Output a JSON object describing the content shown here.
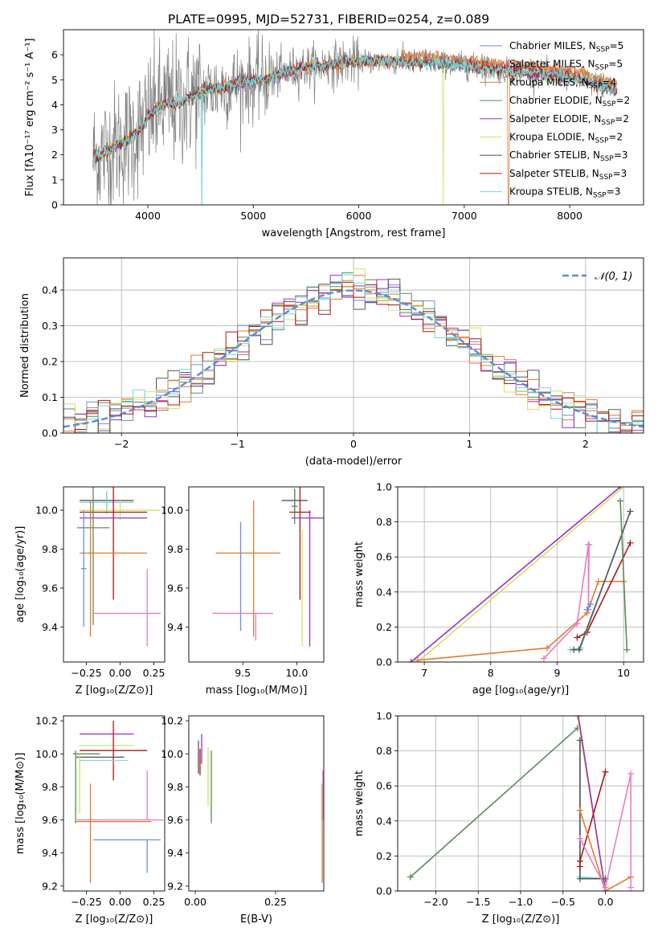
{
  "colors": {
    "Chabrier MILES": "#6b8fd6",
    "Salpeter MILES": "#e07b30",
    "Kroupa MILES": "#e07b30",
    "Chabrier ELODIE": "#5c8a5c",
    "Salpeter ELODIE": "#9b30c0",
    "Kroupa ELODIE": "#d4e060",
    "Chabrier STELIB": "#555555",
    "Salpeter STELIB": "#b01515",
    "Kroupa STELIB": "#7ad6dc",
    "pink": "#e87cc8",
    "gauss": "#5b8bd6",
    "data_gray": "#808080"
  },
  "chart_data": [
    {
      "id": "spectrum",
      "type": "line",
      "title": "PLATE=0995, MJD=52731, FIBERID=0254, z=0.089",
      "xlabel": "wavelength [Angstrom, rest frame]",
      "ylabel": "Flux [fλ10⁻¹⁷ erg cm⁻² s⁻¹ A⁻¹]",
      "xlim": [
        3200,
        8700
      ],
      "ylim": [
        0,
        7
      ],
      "xticks": [
        "4000",
        "5000",
        "6000",
        "7000",
        "8000"
      ],
      "yticks": [
        "0",
        "1",
        "2",
        "3",
        "4",
        "5",
        "6"
      ],
      "grid": false,
      "legend_position": "right",
      "legend": [
        {
          "label": "Chabrier MILES, N",
          "sub": "SSP",
          "suffix": "=5",
          "color_key": "Chabrier MILES"
        },
        {
          "label": "Salpeter MILES, N",
          "sub": "SSP",
          "suffix": "=5",
          "color_key": "Salpeter MILES"
        },
        {
          "label": "Kroupa MILES, N",
          "sub": "SSP",
          "suffix": "=4",
          "color_key": "Kroupa MILES"
        },
        {
          "label": "Chabrier ELODIE, N",
          "sub": "SSP",
          "suffix": "=2",
          "color_key": "Chabrier ELODIE"
        },
        {
          "label": "Salpeter ELODIE, N",
          "sub": "SSP",
          "suffix": "=2",
          "color_key": "Salpeter ELODIE"
        },
        {
          "label": "Kroupa ELODIE, N",
          "sub": "SSP",
          "suffix": "=2",
          "color_key": "Kroupa ELODIE"
        },
        {
          "label": "Chabrier STELIB, N",
          "sub": "SSP",
          "suffix": "=3",
          "color_key": "Chabrier STELIB"
        },
        {
          "label": "Salpeter STELIB, N",
          "sub": "SSP",
          "suffix": "=3",
          "color_key": "Salpeter STELIB"
        },
        {
          "label": "Kroupa STELIB, N",
          "sub": "SSP",
          "suffix": "=3",
          "color_key": "Kroupa STELIB"
        }
      ],
      "model_shape": [
        [
          3450,
          1.8
        ],
        [
          3600,
          2.1
        ],
        [
          3700,
          2.4
        ],
        [
          3800,
          2.55
        ],
        [
          3900,
          2.9
        ],
        [
          3950,
          3.1
        ],
        [
          4000,
          3.5
        ],
        [
          4100,
          3.9
        ],
        [
          4200,
          4.1
        ],
        [
          4300,
          4.0
        ],
        [
          4400,
          4.3
        ],
        [
          4500,
          4.5
        ],
        [
          4700,
          4.7
        ],
        [
          4900,
          4.9
        ],
        [
          5100,
          5.0
        ],
        [
          5300,
          5.3
        ],
        [
          5500,
          5.5
        ],
        [
          5700,
          5.6
        ],
        [
          5900,
          5.7
        ],
        [
          6100,
          5.75
        ],
        [
          6300,
          5.75
        ],
        [
          6500,
          5.7
        ],
        [
          6700,
          5.7
        ],
        [
          6900,
          5.6
        ],
        [
          7100,
          5.5
        ],
        [
          7300,
          5.4
        ],
        [
          7500,
          5.3
        ],
        [
          7800,
          5.2
        ],
        [
          8000,
          5.1
        ],
        [
          8200,
          4.9
        ],
        [
          8400,
          4.6
        ]
      ],
      "data_range": [
        3480,
        8450
      ]
    },
    {
      "id": "residuals",
      "type": "histogram",
      "xlabel": "(data-model)/error",
      "ylabel": "Normed distribution",
      "xlim": [
        -2.5,
        2.5
      ],
      "ylim": [
        0,
        0.49
      ],
      "xticks": [
        "−2",
        "−1",
        "0",
        "1",
        "2"
      ],
      "yticks": [
        "0.0",
        "0.1",
        "0.2",
        "0.3",
        "0.4"
      ],
      "grid": true,
      "legend": "𝒩(0, 1)",
      "legend_position": "top-right",
      "bin_width": 0.1
    },
    {
      "id": "age_vs_Z",
      "type": "errorbar",
      "xlabel": "Z [log₁₀(Z/Z⊙)]",
      "ylabel": "age  [log₁₀(age/yr)]",
      "xlim": [
        -0.42,
        0.33
      ],
      "ylim": [
        9.22,
        10.12
      ],
      "xticks": [
        "−0.25",
        "0.00",
        "0.25"
      ],
      "yticks": [
        "9.4",
        "9.6",
        "9.8",
        "10.0"
      ],
      "points": [
        {
          "color_key": "Chabrier STELIB",
          "x": -0.1,
          "xerr": 0.2,
          "y": 10.05,
          "yerr": 0.04
        },
        {
          "color_key": "Kroupa STELIB",
          "x": -0.1,
          "xerr": 0.2,
          "y": 10.04,
          "yerr": 0.06
        },
        {
          "color_key": "Kroupa ELODIE",
          "x": 0.0,
          "xerr": 0.3,
          "y": 10.0,
          "yerr": 0.05
        },
        {
          "color_key": "Salpeter STELIB",
          "x": -0.05,
          "xerr": 0.25,
          "y": 9.99,
          "yerr": 0.45
        },
        {
          "color_key": "Salpeter ELODIE",
          "x": -0.05,
          "xerr": 0.25,
          "y": 9.96,
          "yerr": 0.0
        },
        {
          "color_key": "Chabrier ELODIE",
          "x": -0.2,
          "xerr": 0.12,
          "y": 9.91,
          "yerr": 0.5
        },
        {
          "color_key": "Salpeter MILES",
          "x": -0.05,
          "xerr": 0.25,
          "y": 9.78,
          "yerr": 0.0
        },
        {
          "color_key": "Kroupa MILES",
          "x": -0.22,
          "xerr": 0.0,
          "y": 9.7,
          "yerr": 0.35
        },
        {
          "color_key": "Chabrier MILES",
          "x": -0.27,
          "xerr": 0.02,
          "y": 9.7,
          "yerr": 0.3
        },
        {
          "color_key": "pink",
          "x": 0.05,
          "xerr": 0.25,
          "y": 9.47,
          "yerr": 0.0
        },
        {
          "color_key": "pink",
          "x": 0.2,
          "xerr": 0.0,
          "y": 9.5,
          "yerr": 0.2
        }
      ]
    },
    {
      "id": "age_vs_mass",
      "type": "errorbar",
      "xlabel": "mass [log₁₀(M/M⊙)]",
      "ylabel": "",
      "xlim": [
        9.0,
        10.25
      ],
      "ylim": [
        9.22,
        10.12
      ],
      "xticks": [
        "9.5",
        "10.0"
      ],
      "yticks": [
        "9.4",
        "9.6",
        "9.8",
        "10.0"
      ],
      "points": [
        {
          "color_key": "Chabrier STELIB",
          "x": 9.98,
          "xerr": 0.12,
          "y": 10.05,
          "yerr": 0.06
        },
        {
          "color_key": "Chabrier ELODIE",
          "x": 9.98,
          "xerr": 0.03,
          "y": 10.02,
          "yerr": 0.09
        },
        {
          "color_key": "Salpeter STELIB",
          "x": 10.03,
          "xerr": 0.1,
          "y": 9.99,
          "yerr": 0.45
        },
        {
          "color_key": "Salpeter ELODIE",
          "x": 10.1,
          "xerr": 0.15,
          "y": 9.96,
          "yerr": 0.0
        },
        {
          "color_key": "Salpeter MILES",
          "x": 9.6,
          "xerr": 0.0,
          "y": 9.7,
          "yerr": 0.35
        },
        {
          "color_key": "Salpeter MILES",
          "x": 9.55,
          "xerr": 0.3,
          "y": 9.78,
          "yerr": 0.0
        },
        {
          "color_key": "Chabrier MILES",
          "x": 9.48,
          "xerr": 0.0,
          "y": 9.66,
          "yerr": 0.28
        },
        {
          "color_key": "pink",
          "x": 9.5,
          "xerr": 0.28,
          "y": 9.47,
          "yerr": 0.0
        },
        {
          "color_key": "pink",
          "x": 9.62,
          "xerr": 0.0,
          "y": 9.4,
          "yerr": 0.07
        },
        {
          "color_key": "Kroupa ELODIE",
          "x": 10.05,
          "xerr": 0.0,
          "y": 9.6,
          "yerr": 0.3
        },
        {
          "color_key": "Salpeter ELODIE",
          "x": 10.12,
          "xerr": 0.0,
          "y": 9.65,
          "yerr": 0.35
        }
      ]
    },
    {
      "id": "weight_vs_age",
      "type": "line",
      "xlabel": "age  [log₁₀(age/yr)]",
      "ylabel": "mass weight",
      "xlim": [
        6.6,
        10.3
      ],
      "ylim": [
        0,
        1
      ],
      "xticks": [
        "7",
        "8",
        "9",
        "10"
      ],
      "yticks": [
        "0.0",
        "0.2",
        "0.4",
        "0.6",
        "0.8",
        "1.0"
      ],
      "grid": true,
      "series": [
        {
          "color_key": "Salpeter ELODIE",
          "x": [
            6.8,
            9.95
          ],
          "y": [
            0.0,
            1.0
          ]
        },
        {
          "color_key": "Kroupa ELODIE",
          "x": [
            6.9,
            10.0
          ],
          "y": [
            0.0,
            1.0
          ]
        },
        {
          "color_key": "Salpeter MILES",
          "x": [
            6.9,
            8.85,
            9.45,
            9.62,
            10.0
          ],
          "y": [
            0.01,
            0.08,
            0.28,
            0.46,
            0.46
          ]
        },
        {
          "color_key": "pink",
          "x": [
            8.8,
            9.3,
            9.47,
            9.47,
            9.48
          ],
          "y": [
            0.02,
            0.22,
            0.67,
            0.3,
            0.67
          ]
        },
        {
          "color_key": "Salpeter STELIB",
          "x": [
            9.3,
            9.45,
            10.1
          ],
          "y": [
            0.14,
            0.17,
            0.68
          ]
        },
        {
          "color_key": "Kroupa STELIB",
          "x": [
            9.2,
            9.35,
            10.1
          ],
          "y": [
            0.07,
            0.08,
            0.86
          ]
        },
        {
          "color_key": "Chabrier STELIB",
          "x": [
            9.25,
            9.33,
            10.1
          ],
          "y": [
            0.07,
            0.07,
            0.86
          ]
        },
        {
          "color_key": "Chabrier ELODIE",
          "x": [
            9.95,
            10.05
          ],
          "y": [
            0.92,
            0.07
          ]
        },
        {
          "color_key": "Chabrier MILES",
          "x": [
            9.45,
            9.5
          ],
          "y": [
            0.3,
            0.33
          ]
        }
      ]
    },
    {
      "id": "mass_vs_Z",
      "type": "errorbar",
      "xlabel": "Z [log₁₀(Z/Z⊙)]",
      "ylabel": "mass [log₁₀(M/M⊙)]",
      "xlim": [
        -0.42,
        0.33
      ],
      "ylim": [
        9.17,
        10.23
      ],
      "xticks": [
        "−0.25",
        "0.00",
        "0.25"
      ],
      "yticks": [
        "9.2",
        "9.4",
        "9.6",
        "9.8",
        "10.0",
        "10.2"
      ],
      "points": [
        {
          "color_key": "Salpeter ELODIE",
          "x": -0.1,
          "xerr": 0.2,
          "y": 10.12,
          "yerr": 0.0
        },
        {
          "color_key": "Kroupa ELODIE",
          "x": -0.1,
          "xerr": 0.2,
          "y": 10.05,
          "yerr": 0.0
        },
        {
          "color_key": "Salpeter STELIB",
          "x": -0.05,
          "xerr": 0.25,
          "y": 10.02,
          "yerr": 0.18
        },
        {
          "color_key": "Chabrier ELODIE",
          "x": -0.25,
          "xerr": 0.1,
          "y": 10.0,
          "yerr": 0.0
        },
        {
          "color_key": "Chabrier STELIB",
          "x": -0.15,
          "xerr": 0.18,
          "y": 9.98,
          "yerr": 0.0
        },
        {
          "color_key": "Kroupa STELIB",
          "x": -0.12,
          "xerr": 0.18,
          "y": 9.96,
          "yerr": 0.0
        },
        {
          "color_key": "Chabrier ELODIE",
          "x": -0.33,
          "xerr": 0.0,
          "y": 9.8,
          "yerr": 0.22
        },
        {
          "color_key": "Kroupa ELODIE",
          "x": -0.3,
          "xerr": 0.0,
          "y": 9.82,
          "yerr": 0.18
        },
        {
          "color_key": "Salpeter MILES",
          "x": -0.05,
          "xerr": 0.28,
          "y": 9.59,
          "yerr": 0.0
        },
        {
          "color_key": "pink",
          "x": 0.0,
          "xerr": 0.32,
          "y": 9.6,
          "yerr": 0.0
        },
        {
          "color_key": "Salpeter MILES",
          "x": -0.22,
          "xerr": 0.0,
          "y": 9.52,
          "yerr": 0.3
        },
        {
          "color_key": "Chabrier MILES",
          "x": 0.05,
          "xerr": 0.25,
          "y": 9.48,
          "yerr": 0.0
        },
        {
          "color_key": "Chabrier MILES",
          "x": 0.2,
          "xerr": 0.0,
          "y": 9.38,
          "yerr": 0.1
        },
        {
          "color_key": "pink",
          "x": 0.2,
          "xerr": 0.0,
          "y": 9.75,
          "yerr": 0.15
        }
      ]
    },
    {
      "id": "mass_vs_EBV",
      "type": "errorbar",
      "xlabel": "E(B-V)",
      "ylabel": "",
      "xlim": [
        -0.02,
        0.4
      ],
      "ylim": [
        9.17,
        10.23
      ],
      "xticks": [
        "0.00",
        "0.25"
      ],
      "yticks": [
        "9.2",
        "9.4",
        "9.6",
        "9.8",
        "10.0",
        "10.2"
      ],
      "points": [
        {
          "color_key": "Chabrier STELIB",
          "x": 0.01,
          "xerr": 0.0,
          "y": 9.98,
          "yerr": 0.1
        },
        {
          "color_key": "Salpeter ELODIE",
          "x": 0.02,
          "xerr": 0.0,
          "y": 10.03,
          "yerr": 0.09
        },
        {
          "color_key": "Salpeter STELIB",
          "x": 0.015,
          "xerr": 0.0,
          "y": 9.95,
          "yerr": 0.08
        },
        {
          "color_key": "Kroupa ELODIE",
          "x": 0.04,
          "xerr": 0.0,
          "y": 9.86,
          "yerr": 0.18
        },
        {
          "color_key": "Chabrier ELODIE",
          "x": 0.05,
          "xerr": 0.0,
          "y": 9.8,
          "yerr": 0.22
        },
        {
          "color_key": "Salpeter MILES",
          "x": 0.395,
          "xerr": 0.0,
          "y": 9.52,
          "yerr": 0.3
        },
        {
          "color_key": "pink",
          "x": 0.397,
          "xerr": 0.0,
          "y": 9.75,
          "yerr": 0.15
        }
      ]
    },
    {
      "id": "weight_vs_Z",
      "type": "line",
      "xlabel": "Z [log₁₀(Z/Z⊙)]",
      "ylabel": "mass weight",
      "xlim": [
        -2.45,
        0.45
      ],
      "ylim": [
        0,
        1
      ],
      "xticks": [
        "−2.0",
        "−1.5",
        "−1.0",
        "−0.5",
        "0.0"
      ],
      "yticks": [
        "0.0",
        "0.2",
        "0.4",
        "0.6",
        "0.8",
        "1.0"
      ],
      "grid": true,
      "series": [
        {
          "color_key": "Chabrier ELODIE",
          "x": [
            -2.3,
            -0.33
          ],
          "y": [
            0.08,
            0.93
          ]
        },
        {
          "color_key": "Kroupa ELODIE",
          "x": [
            -0.33,
            0.0
          ],
          "y": [
            1.0,
            0.0
          ]
        },
        {
          "color_key": "Salpeter ELODIE",
          "x": [
            -0.32,
            0.0
          ],
          "y": [
            1.0,
            0.0
          ]
        },
        {
          "color_key": "Kroupa STELIB",
          "x": [
            -0.3,
            -0.3,
            0.0,
            0.0
          ],
          "y": [
            0.86,
            0.08,
            0.07,
            0.07
          ]
        },
        {
          "color_key": "Chabrier STELIB",
          "x": [
            -0.3,
            -0.3,
            0.0
          ],
          "y": [
            0.86,
            0.07,
            0.07
          ]
        },
        {
          "color_key": "Salpeter STELIB",
          "x": [
            -0.3,
            -0.3,
            0.0
          ],
          "y": [
            0.14,
            0.17,
            0.68
          ]
        },
        {
          "color_key": "Salpeter MILES",
          "x": [
            -0.3,
            0.0,
            0.3
          ],
          "y": [
            0.46,
            0.0,
            0.08
          ]
        },
        {
          "color_key": "pink",
          "x": [
            -0.3,
            0.0,
            0.3,
            0.3
          ],
          "y": [
            0.3,
            0.02,
            0.67,
            0.02
          ]
        }
      ]
    }
  ]
}
